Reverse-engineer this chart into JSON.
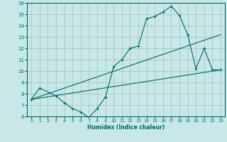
{
  "background_color": "#c8e8e8",
  "grid_color": "#a0c0c0",
  "line_color": "#006868",
  "xlabel": "Humidex (Indice chaleur)",
  "xlim": [
    -0.5,
    23.5
  ],
  "ylim": [
    6,
    16
  ],
  "xticks": [
    0,
    1,
    2,
    3,
    4,
    5,
    6,
    7,
    8,
    9,
    10,
    11,
    12,
    13,
    14,
    15,
    16,
    17,
    18,
    19,
    20,
    21,
    22,
    23
  ],
  "yticks": [
    6,
    7,
    8,
    9,
    10,
    11,
    12,
    13,
    14,
    15,
    16
  ],
  "line1_x": [
    0,
    1,
    3,
    4,
    5,
    6,
    7,
    8,
    9,
    10,
    11,
    12,
    13,
    14,
    15,
    16,
    17,
    18,
    19,
    20,
    21,
    22,
    23
  ],
  "line1_y": [
    7.5,
    8.5,
    7.8,
    7.2,
    6.7,
    6.4,
    5.9,
    6.7,
    7.7,
    10.4,
    11.0,
    12.0,
    12.2,
    14.6,
    14.8,
    15.2,
    15.7,
    14.9,
    13.2,
    10.2,
    12.0,
    10.1,
    10.1
  ],
  "line2_x": [
    0,
    23
  ],
  "line2_y": [
    7.5,
    13.2
  ],
  "line3_x": [
    0,
    23
  ],
  "line3_y": [
    7.5,
    10.1
  ]
}
